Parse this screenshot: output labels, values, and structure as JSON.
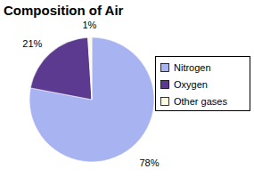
{
  "chart_data": {
    "type": "pie",
    "title": "Composition of Air",
    "categories": [
      "Nitrogen",
      "Oxygen",
      "Other gases"
    ],
    "values": [
      78,
      21,
      1
    ],
    "value_labels": [
      "78%",
      "21%",
      "1%"
    ],
    "colors": [
      "#a8b4f2",
      "#5c3a8f",
      "#fbfbe2"
    ],
    "data_labels": true,
    "legend": "right"
  }
}
